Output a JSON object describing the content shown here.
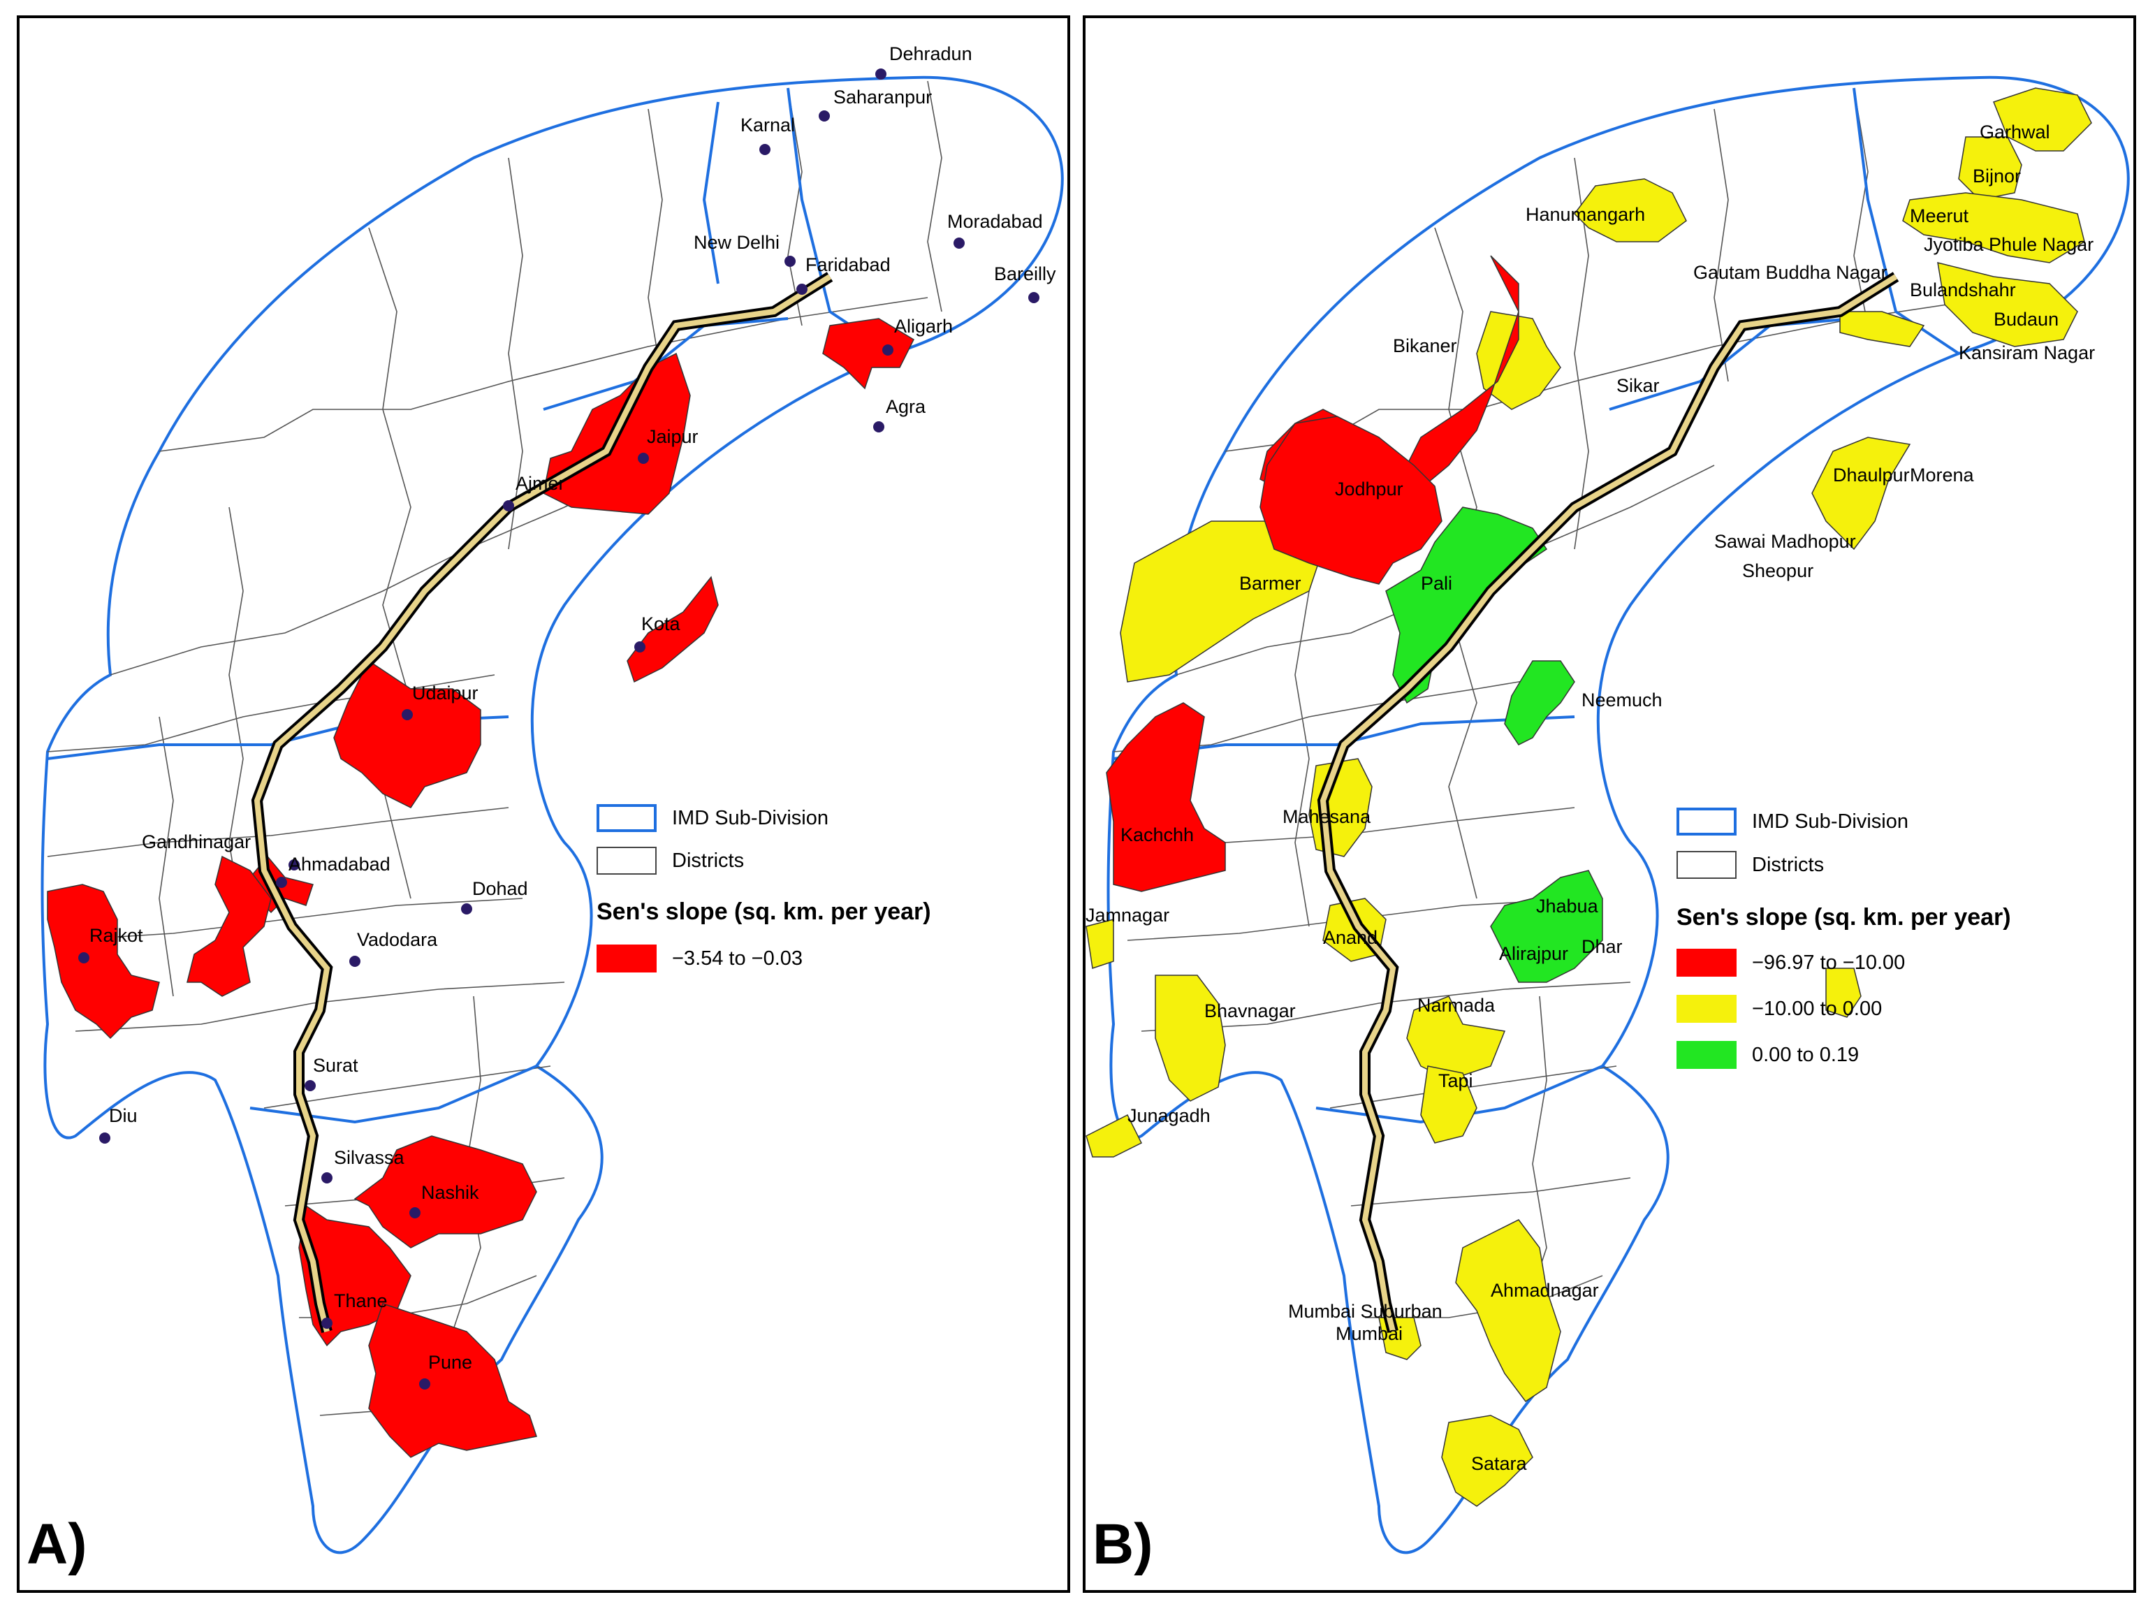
{
  "colors": {
    "subdivision_border": "#1e6fe0",
    "district_border": "#555555",
    "red": "#ff0000",
    "yellow": "#f5f10c",
    "green": "#22e622",
    "corridor": "#e8d48a"
  },
  "panel_a": {
    "label": "A)",
    "legend": {
      "subdivision_label": "IMD Sub-Division",
      "district_label": "Districts",
      "title": "Sen's slope (sq. km. per year)",
      "classes": [
        {
          "range": "−3.54 to −0.03",
          "color": "#ff0000"
        }
      ]
    },
    "cities": [
      "Dehradun",
      "Saharanpur",
      "Karnal",
      "New Delhi",
      "Moradabad",
      "Faridabad",
      "Bareilly",
      "Aligarh",
      "Agra",
      "Jaipur",
      "Ajmer",
      "Kota",
      "Udaipur",
      "Gandhinagar",
      "Ahmadabad",
      "Dohad",
      "Rajkot",
      "Vadodara",
      "Surat",
      "Diu",
      "Silvassa",
      "Nashik",
      "Thane",
      "Pune"
    ],
    "red_districts": [
      "Aligarh",
      "Jaipur",
      "Kota",
      "Udaipur",
      "Ahmadabad",
      "Gandhinagar",
      "Rajkot",
      "Nashik",
      "Thane",
      "Pune"
    ]
  },
  "panel_b": {
    "label": "B)",
    "legend": {
      "subdivision_label": "IMD Sub-Division",
      "district_label": "Districts",
      "title": "Sen's slope (sq. km. per year)",
      "classes": [
        {
          "range": "−96.97 to −10.00",
          "color": "#ff0000"
        },
        {
          "range": "−10.00 to 0.00",
          "color": "#f5f10c"
        },
        {
          "range": "0.00 to 0.19",
          "color": "#22e622"
        }
      ]
    },
    "district_labels": [
      "Garhwal",
      "Bijnor",
      "Meerut",
      "Hanumangarh",
      "Jyotiba Phule Nagar",
      "Gautam Buddha Nagar",
      "Bulandshahr",
      "Budaun",
      "Bikaner",
      "Kansiram Nagar",
      "Sikar",
      "Dhaulpur",
      "Morena",
      "Jodhpur",
      "Sawai Madhopur",
      "Sheopur",
      "Barmer",
      "Pali",
      "Neemuch",
      "Kachchh",
      "Mahesana",
      "Jhabua",
      "Jamnagar",
      "Anand",
      "Alirajpur",
      "Dhar",
      "Bhavnagar",
      "Narmada",
      "Tapi",
      "Junagadh",
      "Ahmadnagar",
      "Mumbai Suburban",
      "Mumbai",
      "Satara"
    ]
  }
}
